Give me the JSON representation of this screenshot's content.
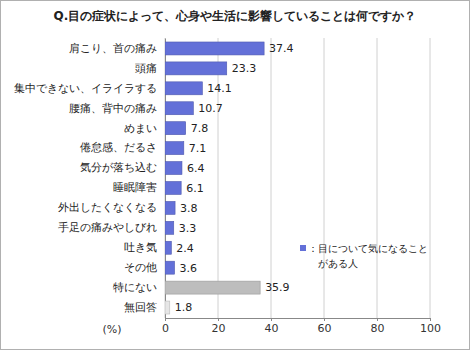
{
  "chart_data": {
    "type": "bar",
    "orientation": "horizontal",
    "title": "Q.目の症状によって、心身や生活に影響していることは何ですか？",
    "x_label": "(%)",
    "categories": [
      "肩こり、首の痛み",
      "頭痛",
      "集中できない、イライラする",
      "腰痛、背中の痛み",
      "めまい",
      "倦怠感、だるさ",
      "気分が落ち込む",
      "睡眠障害",
      "外出したくなくなる",
      "手足の痛みやしびれ",
      "吐き気",
      "その他",
      "特にない",
      "無回答"
    ],
    "series": [
      {
        "name": "：目について気になることがある人",
        "values": [
          37.4,
          23.3,
          14.1,
          10.7,
          7.8,
          7.1,
          6.4,
          6.1,
          3.8,
          3.3,
          2.4,
          3.6,
          35.9,
          1.8
        ]
      }
    ],
    "colors": [
      "#6370d8",
      "#6370d8",
      "#6370d8",
      "#6370d8",
      "#6370d8",
      "#6370d8",
      "#6370d8",
      "#6370d8",
      "#6370d8",
      "#6370d8",
      "#6370d8",
      "#6370d8",
      "#bdbdbd",
      "#e6e6e6"
    ],
    "xlim": [
      0,
      100
    ],
    "xticks": [
      0,
      20,
      40,
      60,
      80,
      100
    ],
    "grid": true,
    "data_labels": true,
    "legend": "bottom-right"
  }
}
